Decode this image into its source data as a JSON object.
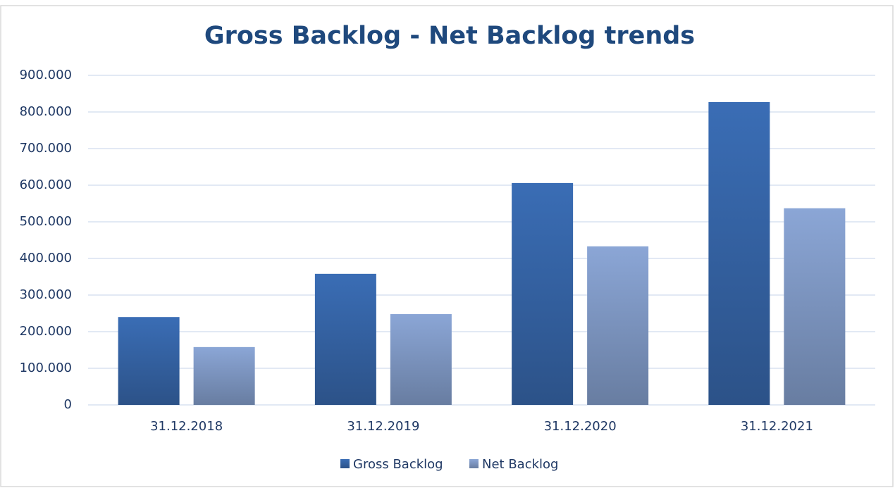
{
  "chart_data": {
    "type": "bar",
    "title": "Gross Backlog - Net Backlog trends",
    "categories": [
      "31.12.2018",
      "31.12.2019",
      "31.12.2020",
      "31.12.2021"
    ],
    "series": [
      {
        "name": "Gross Backlog",
        "color": "#3a6db5",
        "values": [
          240000,
          358000,
          606000,
          827000
        ]
      },
      {
        "name": "Net Backlog",
        "color": "#8ba6d6",
        "values": [
          158000,
          248000,
          433000,
          537000
        ]
      }
    ],
    "ylim": [
      0,
      900000
    ],
    "yticks": [
      0,
      {
        "value": 100000,
        "label": "100.000"
      },
      {
        "value": 200000,
        "label": "200.000"
      },
      {
        "value": 300000,
        "label": "300.000"
      },
      {
        "value": 400000,
        "label": "400.000"
      },
      {
        "value": 500000,
        "label": "500.000"
      },
      {
        "value": 600000,
        "label": "600.000"
      },
      {
        "value": 700000,
        "label": "700.000"
      },
      {
        "value": 800000,
        "label": "800.000"
      },
      {
        "value": 900000,
        "label": "900.000"
      }
    ],
    "grid": true,
    "legend": "bottom"
  }
}
